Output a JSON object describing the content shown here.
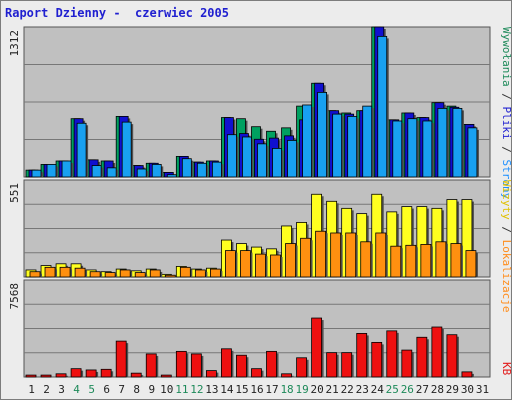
{
  "title": "Raport Dzienny -  czerwiec 2005",
  "right_labels": {
    "panel1": [
      {
        "text": "Wywołania",
        "color": "#1e8a5a"
      },
      {
        "text": " / ",
        "color": "#333333"
      },
      {
        "text": "Pliki",
        "color": "#1f1fd0"
      },
      {
        "text": " / ",
        "color": "#333333"
      },
      {
        "text": "Strony",
        "color": "#1e90ff"
      }
    ],
    "panel2": [
      {
        "text": "Wizyty",
        "color": "#e0c000"
      },
      {
        "text": " / ",
        "color": "#333333"
      },
      {
        "text": "Lokalizacje",
        "color": "#ff8c1a"
      }
    ],
    "panel3": [
      {
        "text": "KB",
        "color": "#e21a1a"
      }
    ]
  },
  "colors": {
    "hits": "#00a060",
    "files": "#1010d0",
    "pages": "#18a0f0",
    "visits": "#ffff20",
    "sites": "#ff9010",
    "kbytes": "#ee1010",
    "panel_bg": "#c0c0c0",
    "gridline": "#777777",
    "weekend_tick": "#1e8a5a",
    "weekday_tick": "#222222"
  },
  "chart_data": {
    "type": "bar",
    "title": "Raport Dzienny -  czerwiec 2005",
    "categories": [
      "1",
      "2",
      "3",
      "4",
      "5",
      "6",
      "7",
      "8",
      "9",
      "10",
      "11",
      "12",
      "13",
      "14",
      "15",
      "16",
      "17",
      "18",
      "19",
      "20",
      "21",
      "22",
      "23",
      "24",
      "25",
      "26",
      "27",
      "28",
      "29",
      "30",
      "31"
    ],
    "weekend_days": [
      4,
      5,
      11,
      12,
      18,
      19,
      25,
      26
    ],
    "panels": [
      {
        "ymax": 1312,
        "ymax_label": "1312",
        "series": [
          {
            "name": "Wywołania",
            "values": [
              60,
              110,
              140,
              510,
              150,
              140,
              530,
              100,
              120,
              40,
              180,
              130,
              140,
              520,
              510,
              440,
              400,
              430,
              620,
              820,
              580,
              560,
              580,
              1312,
              500,
              560,
              520,
              650,
              620,
              460,
              null
            ]
          },
          {
            "name": "Pliki",
            "values": [
              60,
              110,
              140,
              510,
              150,
              140,
              530,
              100,
              120,
              40,
              180,
              130,
              140,
              520,
              380,
              330,
              340,
              360,
              500,
              820,
              580,
              550,
              580,
              1312,
              500,
              560,
              520,
              650,
              610,
              460,
              null
            ]
          },
          {
            "name": "Strony",
            "values": [
              60,
              110,
              140,
              470,
              100,
              80,
              480,
              70,
              110,
              20,
              160,
              120,
              130,
              370,
              350,
              290,
              250,
              320,
              630,
              740,
              550,
              530,
              620,
              1230,
              490,
              510,
              490,
              600,
              600,
              430,
              null
            ]
          }
        ]
      },
      {
        "ymax": 551,
        "ymax_label": "551",
        "series": [
          {
            "name": "Wizyty",
            "values": [
              40,
              65,
              75,
              75,
              40,
              30,
              45,
              35,
              45,
              15,
              60,
              45,
              50,
              210,
              190,
              170,
              160,
              290,
              310,
              470,
              430,
              390,
              360,
              470,
              370,
              400,
              400,
              390,
              440,
              440,
              null
            ]
          },
          {
            "name": "Lokalizacje",
            "values": [
              30,
              55,
              55,
              50,
              30,
              25,
              40,
              25,
              40,
              10,
              55,
              40,
              45,
              150,
              150,
              130,
              125,
              190,
              220,
              260,
              250,
              250,
              200,
              250,
              175,
              180,
              185,
              200,
              190,
              150,
              null
            ]
          }
        ]
      },
      {
        "ymax": 7568,
        "ymax_label": "7568",
        "series": [
          {
            "name": "KB",
            "values": [
              150,
              150,
              250,
              650,
              550,
              600,
              2800,
              300,
              1800,
              150,
              2000,
              1800,
              500,
              2200,
              1700,
              650,
              2000,
              250,
              1500,
              4600,
              1900,
              1900,
              3400,
              2700,
              3600,
              2100,
              3100,
              3900,
              3300,
              400,
              null
            ]
          }
        ]
      }
    ]
  }
}
